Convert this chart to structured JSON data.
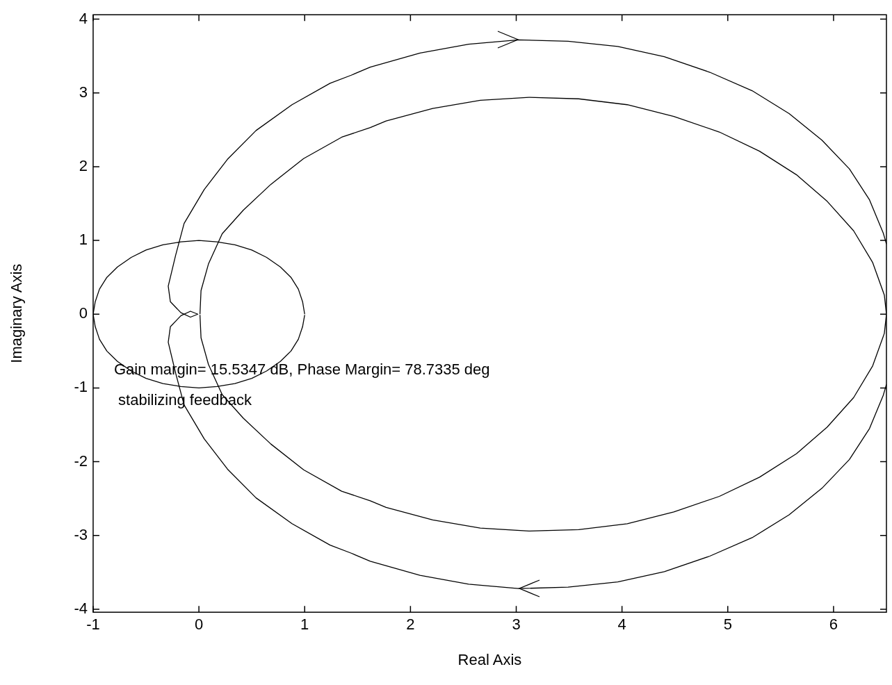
{
  "chart_data": {
    "type": "line",
    "xlabel": "Real Axis",
    "ylabel": "Imaginary Axis",
    "xlim": [
      -1,
      6.5
    ],
    "ylim": [
      -4.04,
      4.06
    ],
    "xticks": [
      -1,
      0,
      1,
      2,
      3,
      4,
      5,
      6
    ],
    "yticks": [
      -4,
      -3,
      -2,
      -1,
      0,
      1,
      2,
      3,
      4
    ],
    "grid": false,
    "legend": false,
    "marker": "none",
    "line_style": "solid",
    "annotations": [
      "Gain margin= 15.5347 dB, Phase Margin= 78.7335 deg",
      " stabilizing feedback"
    ],
    "series": [
      {
        "color": "#000000",
        "x": [
          6.5,
          6.47,
          6.34,
          6.15,
          5.89,
          5.58,
          5.23,
          4.83,
          4.4,
          3.96,
          3.49,
          3.02,
          2.55,
          2.09,
          1.62,
          1.44,
          1.24,
          0.88,
          0.54,
          0.27,
          0.05,
          -0.14,
          -0.22,
          -0.29,
          -0.27,
          -0.17,
          -0.08,
          -0.01,
          -0.08,
          -0.17,
          -0.27,
          -0.29,
          -0.22,
          -0.14,
          0.05,
          0.27,
          0.54,
          0.88,
          1.24,
          1.44,
          1.62,
          2.09,
          2.55,
          3.02,
          3.49,
          3.96,
          4.4,
          4.83,
          5.23,
          5.58,
          5.89,
          6.15,
          6.34,
          6.47,
          6.5
        ],
        "values": [
          -0.95,
          -1.1,
          -1.55,
          -1.97,
          -2.36,
          -2.72,
          -3.03,
          -3.28,
          -3.49,
          -3.63,
          -3.7,
          -3.72,
          -3.66,
          -3.54,
          -3.35,
          -3.24,
          -3.13,
          -2.84,
          -2.49,
          -2.1,
          -1.69,
          -1.23,
          -0.8,
          -0.38,
          -0.17,
          -0.02,
          0.04,
          0,
          -0.04,
          0.02,
          0.17,
          0.38,
          0.8,
          1.23,
          1.69,
          2.1,
          2.49,
          2.84,
          3.13,
          3.24,
          3.35,
          3.54,
          3.66,
          3.72,
          3.7,
          3.63,
          3.49,
          3.28,
          3.03,
          2.72,
          2.36,
          1.97,
          1.55,
          1.1,
          0.95
        ]
      },
      {
        "color": "#010101",
        "x": [
          0.01,
          0.02,
          0.09,
          0.22,
          0.42,
          0.68,
          0.99,
          1.35,
          1.62,
          1.77,
          2.21,
          2.66,
          3.12,
          3.59,
          4.05,
          4.49,
          4.92,
          5.3,
          5.65,
          5.94,
          6.19,
          6.37,
          6.48,
          6.5,
          6.48,
          6.37,
          6.19,
          5.94,
          5.65,
          5.3,
          4.92,
          4.49,
          4.05,
          3.59,
          3.12,
          2.66,
          2.21,
          1.77,
          1.62,
          1.35,
          0.99,
          0.68,
          0.42,
          0.22,
          0.09,
          0.02,
          0.01
        ],
        "values": [
          0,
          0.32,
          0.68,
          1.09,
          1.41,
          1.76,
          2.11,
          2.4,
          2.53,
          2.62,
          2.79,
          2.9,
          2.94,
          2.92,
          2.84,
          2.68,
          2.47,
          2.21,
          1.89,
          1.53,
          1.13,
          0.7,
          0.26,
          0,
          -0.26,
          -0.7,
          -1.13,
          -1.53,
          -1.89,
          -2.21,
          -2.47,
          -2.68,
          -2.84,
          -2.92,
          -2.94,
          -2.9,
          -2.79,
          -2.62,
          -2.53,
          -2.4,
          -2.11,
          -1.76,
          -1.41,
          -1.09,
          -0.68,
          -0.32,
          -0.01
        ]
      },
      {
        "color": "#020202",
        "x": [
          1,
          0.98,
          0.94,
          0.87,
          0.77,
          0.64,
          0.5,
          0.34,
          0.17,
          0,
          -0.17,
          -0.34,
          -0.5,
          -0.64,
          -0.77,
          -0.87,
          -0.94,
          -0.98,
          -1,
          -0.98,
          -0.94,
          -0.87,
          -0.77,
          -0.64,
          -0.5,
          -0.34,
          -0.17,
          0,
          0.17,
          0.34,
          0.5,
          0.64,
          0.77,
          0.87,
          0.94,
          0.98,
          1
        ],
        "values": [
          0,
          0.17,
          0.34,
          0.5,
          0.64,
          0.77,
          0.87,
          0.94,
          0.98,
          1,
          0.98,
          0.94,
          0.87,
          0.77,
          0.64,
          0.5,
          0.34,
          0.17,
          0,
          -0.17,
          -0.34,
          -0.5,
          -0.64,
          -0.77,
          -0.87,
          -0.94,
          -0.98,
          -1,
          -0.98,
          -0.94,
          -0.87,
          -0.77,
          -0.64,
          -0.5,
          -0.34,
          -0.17,
          -0.01
        ]
      }
    ]
  }
}
